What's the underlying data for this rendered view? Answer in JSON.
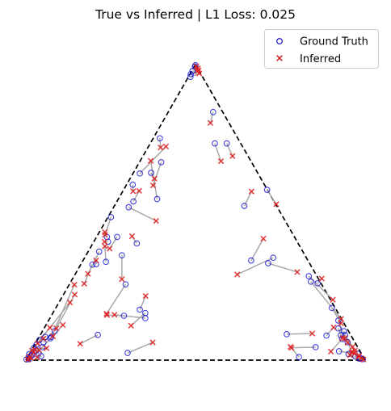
{
  "chart_data": {
    "type": "scatter",
    "title": "True vs Inferred | L1 Loss: 0.025",
    "legend": {
      "placement": "top-right",
      "entries": [
        {
          "name": "Ground Truth",
          "marker": "open-circle",
          "color": "#0000cc"
        },
        {
          "name": "Inferred",
          "marker": "x",
          "color": "#dd2222"
        }
      ]
    },
    "simplex": {
      "outline": "dashed-triangle",
      "vertices": [
        [
          0,
          0
        ],
        [
          1,
          0
        ],
        [
          0.5,
          0.866
        ]
      ]
    },
    "connector_color": "#a9a9a9",
    "series": [
      {
        "name": "Ground Truth",
        "points": [
          [
            0.5,
            0.864
          ],
          [
            0.491,
            0.847
          ],
          [
            0.485,
            0.83
          ],
          [
            0.486,
            0.838
          ],
          [
            0.498,
            0.86
          ],
          [
            0.552,
            0.727
          ],
          [
            0.592,
            0.635
          ],
          [
            0.557,
            0.635
          ],
          [
            0.711,
            0.499
          ],
          [
            0.644,
            0.452
          ],
          [
            0.395,
            0.65
          ],
          [
            0.336,
            0.547
          ],
          [
            0.369,
            0.549
          ],
          [
            0.387,
            0.472
          ],
          [
            0.399,
            0.58
          ],
          [
            0.315,
            0.514
          ],
          [
            0.303,
            0.448
          ],
          [
            0.317,
            0.465
          ],
          [
            0.251,
            0.419
          ],
          [
            0.327,
            0.342
          ],
          [
            0.216,
            0.318
          ],
          [
            0.196,
            0.28
          ],
          [
            0.239,
            0.361
          ],
          [
            0.242,
            0.347
          ],
          [
            0.269,
            0.361
          ],
          [
            0.283,
            0.307
          ],
          [
            0.236,
            0.288
          ],
          [
            0.207,
            0.281
          ],
          [
            0.294,
            0.222
          ],
          [
            0.664,
            0.292
          ],
          [
            0.714,
            0.284
          ],
          [
            0.729,
            0.3
          ],
          [
            0.834,
            0.246
          ],
          [
            0.84,
            0.23
          ],
          [
            0.86,
            0.225
          ],
          [
            0.902,
            0.153
          ],
          [
            0.921,
            0.093
          ],
          [
            0.941,
            0.073
          ],
          [
            0.886,
            0.072
          ],
          [
            0.921,
            0.116
          ],
          [
            0.928,
            0.073
          ],
          [
            0.932,
            0.062
          ],
          [
            0.937,
            0.085
          ],
          [
            0.948,
            0.053
          ],
          [
            0.854,
            0.038
          ],
          [
            0.769,
            0.076
          ],
          [
            0.805,
            0.009
          ],
          [
            0.923,
            0.026
          ],
          [
            0.986,
            0.006
          ],
          [
            0.993,
            0.003
          ],
          [
            0.951,
            0.018
          ],
          [
            0.978,
            0.019
          ],
          [
            0.971,
            0.011
          ],
          [
            0.983,
            0.004
          ],
          [
            0.289,
            0.13
          ],
          [
            0.336,
            0.148
          ],
          [
            0.352,
            0.138
          ],
          [
            0.352,
            0.123
          ],
          [
            0.212,
            0.074
          ],
          [
            0.3,
            0.021
          ],
          [
            0.075,
            0.068
          ],
          [
            0.085,
            0.085
          ],
          [
            0.052,
            0.052
          ],
          [
            0.031,
            0.045
          ],
          [
            0.01,
            0.018
          ],
          [
            0.04,
            0.059
          ],
          [
            0.057,
            0.068
          ],
          [
            0.049,
            0.038
          ],
          [
            0.072,
            0.064
          ],
          [
            0.024,
            0.036
          ],
          [
            0.018,
            0.014
          ],
          [
            0.031,
            0.028
          ],
          [
            0.01,
            0.003
          ],
          [
            0.002,
            0.002
          ],
          [
            0.015,
            0.012
          ],
          [
            0.038,
            0.02
          ],
          [
            0.045,
            0.012
          ],
          [
            0.008,
            0.008
          ]
        ]
      },
      {
        "name": "Inferred",
        "points": [
          [
            0.502,
            0.861
          ],
          [
            0.506,
            0.847
          ],
          [
            0.511,
            0.84
          ],
          [
            0.509,
            0.849
          ],
          [
            0.507,
            0.855
          ],
          [
            0.544,
            0.695
          ],
          [
            0.609,
            0.598
          ],
          [
            0.575,
            0.583
          ],
          [
            0.738,
            0.457
          ],
          [
            0.665,
            0.494
          ],
          [
            0.397,
            0.623
          ],
          [
            0.413,
            0.626
          ],
          [
            0.379,
            0.532
          ],
          [
            0.368,
            0.584
          ],
          [
            0.375,
            0.512
          ],
          [
            0.316,
            0.495
          ],
          [
            0.384,
            0.408
          ],
          [
            0.334,
            0.496
          ],
          [
            0.233,
            0.367
          ],
          [
            0.313,
            0.363
          ],
          [
            0.183,
            0.253
          ],
          [
            0.172,
            0.224
          ],
          [
            0.233,
            0.375
          ],
          [
            0.232,
            0.347
          ],
          [
            0.247,
            0.327
          ],
          [
            0.283,
            0.237
          ],
          [
            0.233,
            0.334
          ],
          [
            0.207,
            0.292
          ],
          [
            0.238,
            0.136
          ],
          [
            0.7,
            0.356
          ],
          [
            0.8,
            0.258
          ],
          [
            0.623,
            0.251
          ],
          [
            0.905,
            0.177
          ],
          [
            0.929,
            0.121
          ],
          [
            0.872,
            0.239
          ],
          [
            0.929,
            0.108
          ],
          [
            0.933,
            0.065
          ],
          [
            0.963,
            0.039
          ],
          [
            0.907,
            0.096
          ],
          [
            0.94,
            0.064
          ],
          [
            0.948,
            0.051
          ],
          [
            0.899,
            0.025
          ],
          [
            0.96,
            0.023
          ],
          [
            0.97,
            0.028
          ],
          [
            0.783,
            0.036
          ],
          [
            0.844,
            0.078
          ],
          [
            0.78,
            0.039
          ],
          [
            0.969,
            0.02
          ],
          [
            0.995,
            0.002
          ],
          [
            0.989,
            0.005
          ],
          [
            0.963,
            0.024
          ],
          [
            0.982,
            0.013
          ],
          [
            0.981,
            0.01
          ],
          [
            0.955,
            0.015
          ],
          [
            0.239,
            0.132
          ],
          [
            0.353,
            0.188
          ],
          [
            0.31,
            0.101
          ],
          [
            0.261,
            0.133
          ],
          [
            0.16,
            0.048
          ],
          [
            0.374,
            0.052
          ],
          [
            0.143,
            0.221
          ],
          [
            0.144,
            0.192
          ],
          [
            0.09,
            0.093
          ],
          [
            0.13,
            0.169
          ],
          [
            0.035,
            0.049
          ],
          [
            0.071,
            0.095
          ],
          [
            0.052,
            0.063
          ],
          [
            0.109,
            0.103
          ],
          [
            0.08,
            0.07
          ],
          [
            0.061,
            0.035
          ],
          [
            0.018,
            0.028
          ],
          [
            0.039,
            0.029
          ],
          [
            0.015,
            0.006
          ],
          [
            0.006,
            0.002
          ],
          [
            0.023,
            0.023
          ],
          [
            0.027,
            0.03
          ],
          [
            0.033,
            0.008
          ],
          [
            0.01,
            0.01
          ]
        ]
      }
    ],
    "xlim": [
      0,
      1
    ],
    "ylim": [
      0,
      0.866
    ],
    "axes_visible": false,
    "grid": false
  }
}
